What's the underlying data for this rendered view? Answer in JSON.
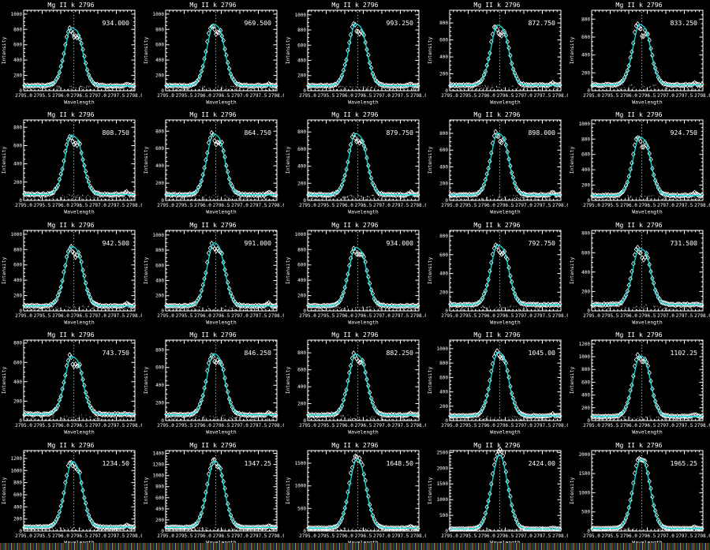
{
  "page": {
    "background": "#000000"
  },
  "colors": {
    "axis": "#ffffff",
    "text": "#ffffff",
    "fit_line": "#00e2e2",
    "symbol": "#ffffff",
    "dotted_line": "#ffffff",
    "strip_dark": "#0a0a0a",
    "strip_colors": [
      "#c03030",
      "#109010",
      "#2040c0",
      "#b0b020"
    ]
  },
  "chart_data": {
    "type": "line",
    "layout": {
      "rows": 5,
      "cols": 5
    },
    "shared": {
      "title": "Mg II k 2796",
      "xlabel": "Wavelength",
      "ylabel": "Intensity",
      "xlim": [
        2795.0,
        2798.0
      ],
      "xticks": [
        2795.0,
        2795.5,
        2796.0,
        2796.5,
        2797.0,
        2797.5,
        2798.0
      ],
      "line_center": 2796.35,
      "continuum": 65,
      "marker": "open-diamond",
      "fit_style": "solid-cyan",
      "center_line_style": "dotted-vertical"
    },
    "panels": [
      {
        "label": "934.000",
        "peak": 934.0,
        "yticks": [
          0,
          200,
          400,
          600,
          800,
          1000
        ],
        "ymax": 1050,
        "dip": 0.32
      },
      {
        "label": "969.500",
        "peak": 969.5,
        "yticks": [
          0,
          200,
          400,
          600,
          800,
          1000
        ],
        "ymax": 1050,
        "dip": 0.28
      },
      {
        "label": "993.250",
        "peak": 993.25,
        "yticks": [
          0,
          200,
          400,
          600,
          800,
          1000
        ],
        "ymax": 1060,
        "dip": 0.3
      },
      {
        "label": "872.750",
        "peak": 872.75,
        "yticks": [
          0,
          200,
          400,
          600,
          800
        ],
        "ymax": 950,
        "dip": 0.3
      },
      {
        "label": "833.250",
        "peak": 833.25,
        "yticks": [
          0,
          200,
          400,
          600,
          800
        ],
        "ymax": 900,
        "dip": 0.3
      },
      {
        "label": "808.750",
        "peak": 808.75,
        "yticks": [
          0,
          200,
          400,
          600,
          800
        ],
        "ymax": 880,
        "dip": 0.32
      },
      {
        "label": "864.750",
        "peak": 864.75,
        "yticks": [
          0,
          200,
          400,
          600,
          800
        ],
        "ymax": 930,
        "dip": 0.3
      },
      {
        "label": "879.750",
        "peak": 879.75,
        "yticks": [
          0,
          200,
          400,
          600,
          800
        ],
        "ymax": 940,
        "dip": 0.3
      },
      {
        "label": "898.000",
        "peak": 898.0,
        "yticks": [
          0,
          200,
          400,
          600,
          800
        ],
        "ymax": 960,
        "dip": 0.28
      },
      {
        "label": "924.750",
        "peak": 924.75,
        "yticks": [
          0,
          200,
          400,
          600,
          800,
          1000
        ],
        "ymax": 1050,
        "dip": 0.28
      },
      {
        "label": "942.500",
        "peak": 942.5,
        "yticks": [
          0,
          200,
          400,
          600,
          800,
          1000
        ],
        "ymax": 1050,
        "dip": 0.28
      },
      {
        "label": "991.000",
        "peak": 991.0,
        "yticks": [
          0,
          200,
          400,
          600,
          800,
          1000
        ],
        "ymax": 1060,
        "dip": 0.25
      },
      {
        "label": "934.000",
        "peak": 934.0,
        "yticks": [
          0,
          200,
          400,
          600,
          800,
          1000
        ],
        "ymax": 1050,
        "dip": 0.3
      },
      {
        "label": "792.750",
        "peak": 792.75,
        "yticks": [
          0,
          200,
          400,
          600,
          800
        ],
        "ymax": 860,
        "dip": 0.3
      },
      {
        "label": "731.500",
        "peak": 731.5,
        "yticks": [
          0,
          200,
          400,
          600,
          800
        ],
        "ymax": 830,
        "dip": 0.32
      },
      {
        "label": "743.750",
        "peak": 743.75,
        "yticks": [
          0,
          200,
          400,
          600,
          800
        ],
        "ymax": 830,
        "dip": 0.3
      },
      {
        "label": "846.250",
        "peak": 846.25,
        "yticks": [
          0,
          200,
          400,
          600,
          800
        ],
        "ymax": 910,
        "dip": 0.28
      },
      {
        "label": "882.250",
        "peak": 882.25,
        "yticks": [
          0,
          200,
          400,
          600,
          800
        ],
        "ymax": 950,
        "dip": 0.3
      },
      {
        "label": "1045.00",
        "peak": 1045.0,
        "yticks": [
          0,
          200,
          400,
          600,
          800,
          1000
        ],
        "ymax": 1120,
        "dip": 0.22
      },
      {
        "label": "1102.25",
        "peak": 1102.25,
        "yticks": [
          0,
          200,
          400,
          600,
          800,
          1000,
          1200
        ],
        "ymax": 1260,
        "dip": 0.2
      },
      {
        "label": "1234.50",
        "peak": 1234.5,
        "yticks": [
          0,
          200,
          400,
          600,
          800,
          1000,
          1200
        ],
        "ymax": 1330,
        "dip": 0.18
      },
      {
        "label": "1347.25",
        "peak": 1347.25,
        "yticks": [
          0,
          200,
          400,
          600,
          800,
          1000,
          1200,
          1400
        ],
        "ymax": 1450,
        "dip": 0.15
      },
      {
        "label": "1648.50",
        "peak": 1648.5,
        "yticks": [
          0,
          500,
          1000,
          1500
        ],
        "ymax": 1780,
        "dip": 0.08
      },
      {
        "label": "2424.00",
        "peak": 2424.0,
        "yticks": [
          0,
          500,
          1000,
          1500,
          2000,
          2500
        ],
        "ymax": 2560,
        "dip": 0.0
      },
      {
        "label": "1965.25",
        "peak": 1965.25,
        "yticks": [
          0,
          500,
          1000,
          1500,
          2000
        ],
        "ymax": 2100,
        "dip": 0.1
      }
    ]
  }
}
